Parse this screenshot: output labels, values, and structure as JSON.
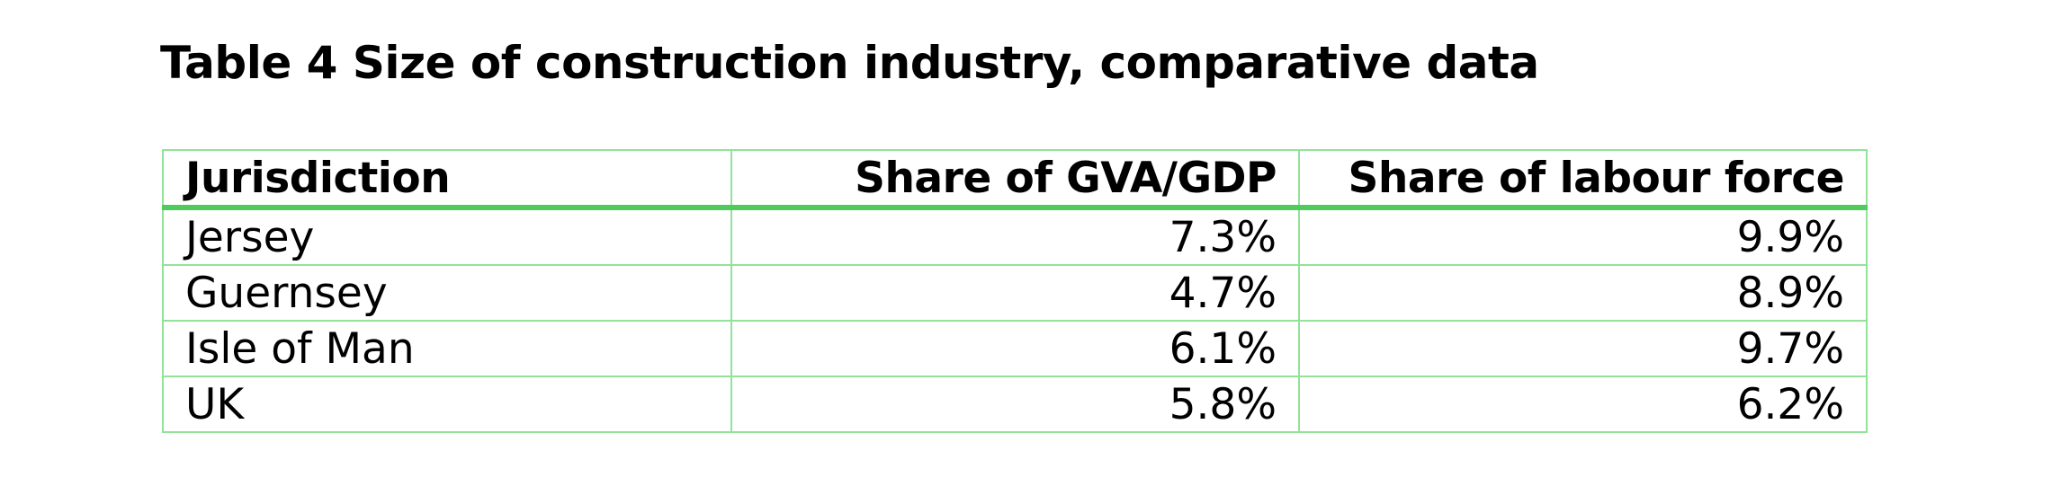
{
  "table": {
    "caption": "Table 4 Size of construction industry, comparative data",
    "headers": [
      "Jurisdiction",
      "Share of GVA/GDP",
      "Share of labour force"
    ],
    "rows": [
      [
        "Jersey",
        "7.3%",
        "9.9%"
      ],
      [
        "Guernsey",
        "4.7%",
        "8.9%"
      ],
      [
        "Isle of Man",
        "6.1%",
        "9.7%"
      ],
      [
        "UK",
        "5.8%",
        "6.2%"
      ]
    ]
  },
  "colors": {
    "border": "#92e29a",
    "header_rule": "#4fcb5c",
    "text": "#000000"
  }
}
